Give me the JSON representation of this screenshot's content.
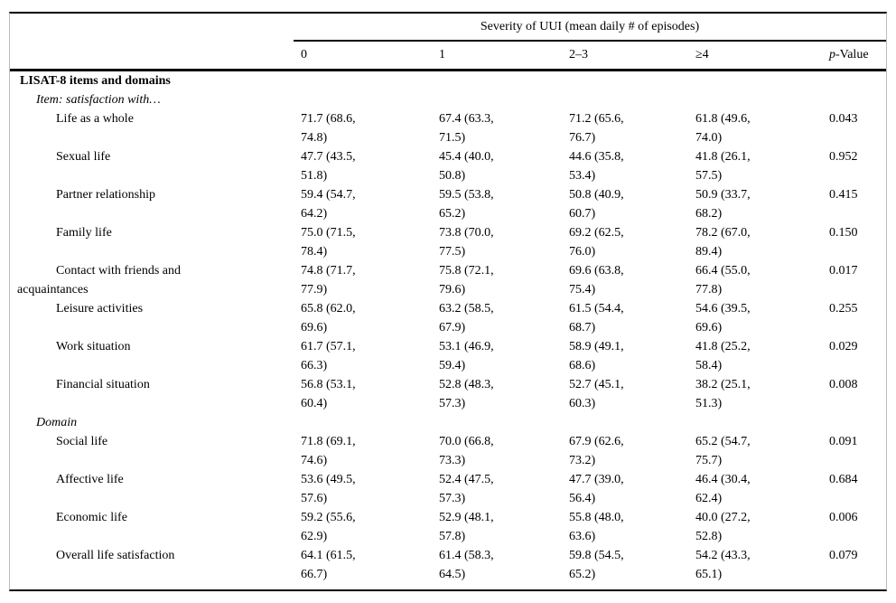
{
  "table": {
    "spanner_header": "Severity of UUI (mean daily # of episodes)",
    "columns": [
      "0",
      "1",
      "2–3",
      "≥4"
    ],
    "p_header": {
      "italic": "p",
      "rest": "-Value"
    },
    "section_title": "LISAT-8 items and domains",
    "groups": [
      {
        "title": "Item: satisfaction with…",
        "rows": [
          {
            "label": "Life as a whole",
            "values": [
              "71.7 (68.6, 74.8)",
              "67.4 (63.3, 71.5)",
              "71.2 (65.6, 76.7)",
              "61.8 (49.6, 74.0)"
            ],
            "p": "0.043"
          },
          {
            "label": "Sexual life",
            "values": [
              "47.7 (43.5, 51.8)",
              "45.4 (40.0, 50.8)",
              "44.6 (35.8, 53.4)",
              "41.8 (26.1, 57.5)"
            ],
            "p": "0.952"
          },
          {
            "label": "Partner relationship",
            "values": [
              "59.4 (54.7, 64.2)",
              "59.5 (53.8, 65.2)",
              "50.8 (40.9, 60.7)",
              "50.9 (33.7, 68.2)"
            ],
            "p": "0.415"
          },
          {
            "label": "Family life",
            "values": [
              "75.0 (71.5, 78.4)",
              "73.8 (70.0, 77.5)",
              "69.2 (62.5, 76.0)",
              "78.2 (67.0, 89.4)"
            ],
            "p": "0.150"
          },
          {
            "label": "Contact with friends and acquaintances",
            "values": [
              "74.8 (71.7, 77.9)",
              "75.8 (72.1, 79.6)",
              "69.6 (63.8, 75.4)",
              "66.4 (55.0, 77.8)"
            ],
            "p": "0.017"
          },
          {
            "label": "Leisure activities",
            "values": [
              "65.8 (62.0, 69.6)",
              "63.2 (58.5, 67.9)",
              "61.5 (54.4, 68.7)",
              "54.6 (39.5, 69.6)"
            ],
            "p": "0.255"
          },
          {
            "label": "Work situation",
            "values": [
              "61.7 (57.1, 66.3)",
              "53.1 (46.9, 59.4)",
              "58.9 (49.1, 68.6)",
              "41.8 (25.2, 58.4)"
            ],
            "p": "0.029"
          },
          {
            "label": "Financial situation",
            "values": [
              "56.8 (53.1, 60.4)",
              "52.8 (48.3, 57.3)",
              "52.7 (45.1, 60.3)",
              "38.2 (25.1, 51.3)"
            ],
            "p": "0.008"
          }
        ]
      },
      {
        "title": "Domain",
        "rows": [
          {
            "label": "Social life",
            "values": [
              "71.8 (69.1, 74.6)",
              "70.0 (66.8, 73.3)",
              "67.9 (62.6, 73.2)",
              "65.2 (54.7, 75.7)"
            ],
            "p": "0.091"
          },
          {
            "label": "Affective life",
            "values": [
              "53.6 (49.5, 57.6)",
              "52.4 (47.5, 57.3)",
              "47.7 (39.0, 56.4)",
              "46.4 (30.4, 62.4)"
            ],
            "p": "0.684"
          },
          {
            "label": "Economic life",
            "values": [
              "59.2 (55.6, 62.9)",
              "52.9 (48.1, 57.8)",
              "55.8 (48.0, 63.6)",
              "40.0 (27.2, 52.8)"
            ],
            "p": "0.006"
          },
          {
            "label": "Overall life satisfaction",
            "values": [
              "64.1 (61.5, 66.7)",
              "61.4 (58.3, 64.5)",
              "59.8 (54.5, 65.2)",
              "54.2 (43.3, 65.1)"
            ],
            "p": "0.079"
          }
        ]
      }
    ]
  }
}
